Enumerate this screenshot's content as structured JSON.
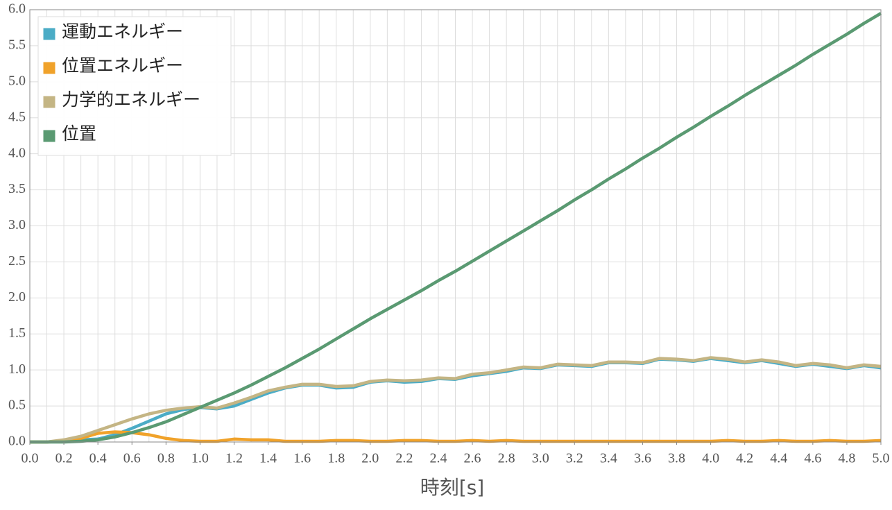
{
  "chart_data": {
    "type": "line",
    "x_label": "時刻[s]",
    "x": [
      0,
      0.1,
      0.2,
      0.3,
      0.4,
      0.5,
      0.6,
      0.7,
      0.8,
      0.9,
      1,
      1.1,
      1.2,
      1.3,
      1.4,
      1.5,
      1.6,
      1.7,
      1.8,
      1.9,
      2,
      2.1,
      2.2,
      2.3,
      2.4,
      2.5,
      2.6,
      2.7,
      2.8,
      2.9,
      3,
      3.1,
      3.2,
      3.3,
      3.4,
      3.5,
      3.6,
      3.7,
      3.8,
      3.9,
      4,
      4.1,
      4.2,
      4.3,
      4.4,
      4.5,
      4.6,
      4.7,
      4.8,
      4.9,
      5
    ],
    "series": [
      {
        "name": "運動エネルギー",
        "color": "#4bacc6",
        "values": [
          0,
          0,
          0.02,
          0.03,
          0.04,
          0.1,
          0.19,
          0.29,
          0.39,
          0.45,
          0.48,
          0.46,
          0.5,
          0.59,
          0.68,
          0.75,
          0.79,
          0.79,
          0.75,
          0.76,
          0.83,
          0.85,
          0.83,
          0.84,
          0.88,
          0.87,
          0.92,
          0.95,
          0.98,
          1.03,
          1.02,
          1.07,
          1.06,
          1.05,
          1.1,
          1.1,
          1.09,
          1.15,
          1.14,
          1.12,
          1.16,
          1.13,
          1.1,
          1.13,
          1.09,
          1.05,
          1.08,
          1.05,
          1.02,
          1.06,
          1.03
        ]
      },
      {
        "name": "位置エネルギー",
        "color": "#f0a22a",
        "values": [
          0,
          0,
          0.01,
          0.05,
          0.12,
          0.14,
          0.13,
          0.1,
          0.05,
          0.02,
          0.01,
          0.01,
          0.04,
          0.03,
          0.03,
          0.01,
          0.01,
          0.01,
          0.02,
          0.02,
          0.01,
          0.01,
          0.02,
          0.02,
          0.01,
          0.01,
          0.02,
          0.01,
          0.02,
          0.01,
          0.01,
          0.01,
          0.01,
          0.01,
          0.01,
          0.01,
          0.01,
          0.01,
          0.01,
          0.01,
          0.01,
          0.02,
          0.01,
          0.01,
          0.02,
          0.01,
          0.01,
          0.02,
          0.01,
          0.01,
          0.02
        ]
      },
      {
        "name": "力学的エネルギー",
        "color": "#c4b584",
        "values": [
          0,
          0,
          0.03,
          0.08,
          0.16,
          0.24,
          0.32,
          0.39,
          0.44,
          0.47,
          0.49,
          0.47,
          0.54,
          0.62,
          0.71,
          0.76,
          0.8,
          0.8,
          0.77,
          0.78,
          0.84,
          0.86,
          0.85,
          0.86,
          0.89,
          0.88,
          0.94,
          0.96,
          1.0,
          1.04,
          1.03,
          1.08,
          1.07,
          1.06,
          1.11,
          1.11,
          1.1,
          1.16,
          1.15,
          1.13,
          1.17,
          1.15,
          1.11,
          1.14,
          1.11,
          1.06,
          1.09,
          1.07,
          1.03,
          1.07,
          1.05
        ]
      },
      {
        "name": "位置",
        "color": "#5a9a72",
        "values": [
          0,
          0,
          0,
          0.01,
          0.03,
          0.07,
          0.13,
          0.2,
          0.28,
          0.38,
          0.48,
          0.58,
          0.68,
          0.79,
          0.91,
          1.03,
          1.16,
          1.29,
          1.43,
          1.57,
          1.71,
          1.84,
          1.97,
          2.1,
          2.24,
          2.37,
          2.51,
          2.65,
          2.79,
          2.93,
          3.07,
          3.21,
          3.36,
          3.5,
          3.65,
          3.79,
          3.94,
          4.08,
          4.23,
          4.37,
          4.52,
          4.66,
          4.81,
          4.95,
          5.09,
          5.23,
          5.38,
          5.52,
          5.66,
          5.81,
          5.95
        ]
      }
    ],
    "xlim": [
      0,
      5
    ],
    "xticks": [
      {
        "value": 0,
        "label": "0.0"
      },
      0.2,
      0.4,
      0.6,
      0.8,
      {
        "value": 1,
        "label": "1.0"
      },
      1.2,
      1.4,
      1.6,
      1.8,
      {
        "value": 2,
        "label": "2.0"
      },
      2.2,
      2.4,
      2.6,
      2.8,
      {
        "value": 3,
        "label": "3.0"
      },
      3.2,
      3.4,
      3.6,
      3.8,
      {
        "value": 4,
        "label": "4.0"
      },
      4.2,
      4.4,
      4.6,
      4.8,
      {
        "value": 5,
        "label": "5.0"
      }
    ],
    "ylim": [
      0,
      6
    ],
    "yticks": [
      {
        "value": 0,
        "label": "0.0"
      },
      0.5,
      {
        "value": 1,
        "label": "1.0"
      },
      1.5,
      {
        "value": 2,
        "label": "2.0"
      },
      2.5,
      {
        "value": 3,
        "label": "3.0"
      },
      3.5,
      {
        "value": 4,
        "label": "4.0"
      },
      4.5,
      {
        "value": 5,
        "label": "5.0"
      },
      5.5,
      {
        "value": 6,
        "label": "6.0"
      }
    ],
    "grid": true,
    "legend": "top-left"
  }
}
